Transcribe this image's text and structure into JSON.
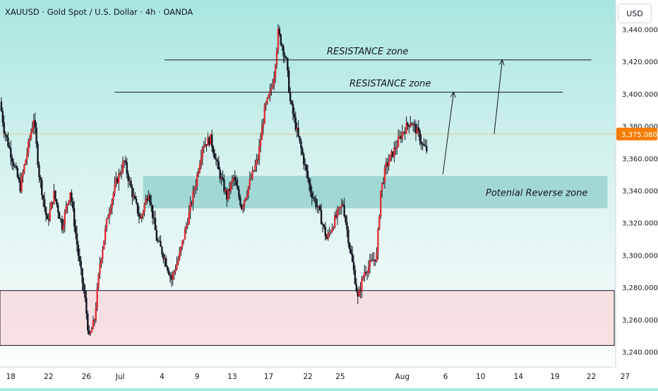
{
  "header": {
    "symbol_title": "XAUUSD · Gold Spot / U.S. Dollar · 4h · OANDA",
    "currency_button": "USD"
  },
  "colors": {
    "bull_candle": "#26a69a",
    "bear_candle": "#ef5350",
    "candle_body": "#e0323b",
    "wick": "#131722",
    "reverse_zone_fill": "#8fcfc9",
    "support_zone_fill": "#f9dadc",
    "price_marker": "#f57c00",
    "trendline": "#131722"
  },
  "annotations": {
    "resistance_zone_upper": "RESISTANCE zone",
    "resistance_zone_lower": "RESISTANCE zone",
    "reverse_zone": "Potenial Reverse zone"
  },
  "chart_data": {
    "type": "candlestick",
    "y_axis": {
      "ticks": [
        3240,
        3260,
        3280,
        3300,
        3320,
        3340,
        3360,
        3380,
        3400,
        3420,
        3440
      ],
      "tick_labels": [
        "3,240.000",
        "3,260.000",
        "3,280.000",
        "3,300.000",
        "3,320.000",
        "3,340.000",
        "3,360.000",
        "3,380.000",
        "3,400.000",
        "3,420.000",
        "3,440.000"
      ],
      "ylim": [
        3235,
        3445
      ]
    },
    "x_axis": {
      "tick_labels": [
        "18",
        "22",
        "26",
        "Jul",
        "4",
        "9",
        "13",
        "17",
        "22",
        "25",
        "Aug",
        "6",
        "10",
        "14",
        "19",
        "22",
        "27"
      ]
    },
    "current_price": 3375.08,
    "current_price_label": "3,375.080",
    "price_path": [
      [
        0,
        3395
      ],
      [
        0.3,
        3378
      ],
      [
        0.9,
        3360
      ],
      [
        1.5,
        3342
      ],
      [
        2.1,
        3368
      ],
      [
        2.5,
        3385
      ],
      [
        2.9,
        3350
      ],
      [
        3.5,
        3320
      ],
      [
        4.0,
        3338
      ],
      [
        4.6,
        3318
      ],
      [
        5.2,
        3340
      ],
      [
        5.8,
        3300
      ],
      [
        6.3,
        3272
      ],
      [
        6.6,
        3248
      ],
      [
        7.0,
        3260
      ],
      [
        7.4,
        3295
      ],
      [
        8.0,
        3325
      ],
      [
        8.6,
        3345
      ],
      [
        9.2,
        3358
      ],
      [
        9.8,
        3338
      ],
      [
        10.4,
        3322
      ],
      [
        11.0,
        3340
      ],
      [
        11.6,
        3310
      ],
      [
        12.2,
        3298
      ],
      [
        12.7,
        3285
      ],
      [
        13.3,
        3300
      ],
      [
        13.9,
        3322
      ],
      [
        14.5,
        3345
      ],
      [
        15.0,
        3368
      ],
      [
        15.6,
        3372
      ],
      [
        16.2,
        3352
      ],
      [
        16.8,
        3336
      ],
      [
        17.3,
        3348
      ],
      [
        17.9,
        3330
      ],
      [
        18.5,
        3345
      ],
      [
        19.1,
        3360
      ],
      [
        19.6,
        3390
      ],
      [
        20.0,
        3400
      ],
      [
        20.3,
        3412
      ],
      [
        20.6,
        3438
      ],
      [
        20.9,
        3430
      ],
      [
        21.2,
        3420
      ],
      [
        21.5,
        3395
      ],
      [
        21.9,
        3380
      ],
      [
        22.4,
        3362
      ],
      [
        23.0,
        3340
      ],
      [
        23.6,
        3328
      ],
      [
        24.2,
        3310
      ],
      [
        24.8,
        3322
      ],
      [
        25.4,
        3332
      ],
      [
        25.9,
        3305
      ],
      [
        26.3,
        3285
      ],
      [
        26.5,
        3273
      ],
      [
        27.0,
        3290
      ],
      [
        27.5,
        3295
      ],
      [
        27.9,
        3300
      ],
      [
        28.2,
        3340
      ],
      [
        28.6,
        3355
      ],
      [
        29.2,
        3365
      ],
      [
        29.8,
        3376
      ],
      [
        30.4,
        3383
      ],
      [
        31.0,
        3375
      ],
      [
        31.3,
        3368
      ],
      [
        31.6,
        3365
      ]
    ],
    "zones": [
      {
        "name": "potential-reverse-zone",
        "label": "Potenial Reverse zone",
        "from_x": 10.6,
        "to_x": 45,
        "y_low": 3329,
        "y_high": 3349
      },
      {
        "name": "support-zone",
        "label": "",
        "from_x": 0,
        "to_x": 45.5,
        "y_low": 3244,
        "y_high": 3278
      }
    ],
    "lines": [
      {
        "name": "resistance-line-upper",
        "label": "RESISTANCE zone",
        "from_x": 12.2,
        "to_x": 43.8,
        "y": 3421
      },
      {
        "name": "resistance-line-lower",
        "label": "RESISTANCE zone",
        "from_x": 8.5,
        "to_x": 41.7,
        "y": 3401
      }
    ],
    "arrows": [
      {
        "name": "projection-arrow-lower",
        "from": [
          32.8,
          3350
        ],
        "to": [
          33.6,
          3401
        ]
      },
      {
        "name": "projection-arrow-upper",
        "from": [
          36.6,
          3375
        ],
        "to": [
          37.2,
          3421
        ]
      }
    ]
  }
}
